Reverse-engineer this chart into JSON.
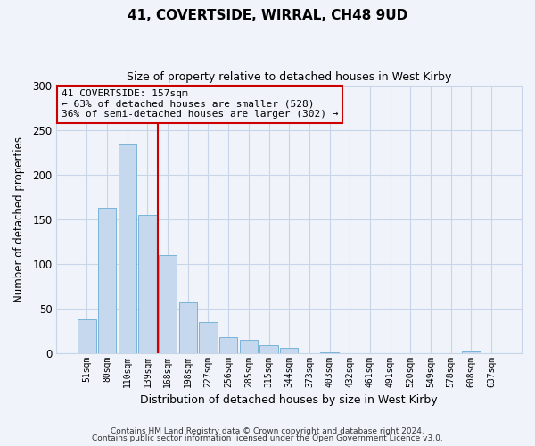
{
  "title": "41, COVERTSIDE, WIRRAL, CH48 9UD",
  "subtitle": "Size of property relative to detached houses in West Kirby",
  "xlabel": "Distribution of detached houses by size in West Kirby",
  "ylabel": "Number of detached properties",
  "bar_labels": [
    "51sqm",
    "80sqm",
    "110sqm",
    "139sqm",
    "168sqm",
    "198sqm",
    "227sqm",
    "256sqm",
    "285sqm",
    "315sqm",
    "344sqm",
    "373sqm",
    "403sqm",
    "432sqm",
    "461sqm",
    "491sqm",
    "520sqm",
    "549sqm",
    "578sqm",
    "608sqm",
    "637sqm"
  ],
  "bar_values": [
    38,
    163,
    235,
    155,
    110,
    57,
    35,
    18,
    15,
    9,
    6,
    0,
    1,
    0,
    0,
    0,
    0,
    0,
    0,
    2,
    0
  ],
  "bar_color": "#c5d8ed",
  "bar_edgecolor": "#7ab4d8",
  "ylim": [
    0,
    300
  ],
  "yticks": [
    0,
    50,
    100,
    150,
    200,
    250,
    300
  ],
  "vline_pos": 3.5,
  "vline_color": "#cc0000",
  "annotation_title": "41 COVERTSIDE: 157sqm",
  "annotation_line1": "← 63% of detached houses are smaller (528)",
  "annotation_line2": "36% of semi-detached houses are larger (302) →",
  "annotation_box_edgecolor": "#cc0000",
  "footer1": "Contains HM Land Registry data © Crown copyright and database right 2024.",
  "footer2": "Contains public sector information licensed under the Open Government Licence v3.0.",
  "bg_color": "#f0f4fa",
  "grid_color": "#c8d4e8"
}
